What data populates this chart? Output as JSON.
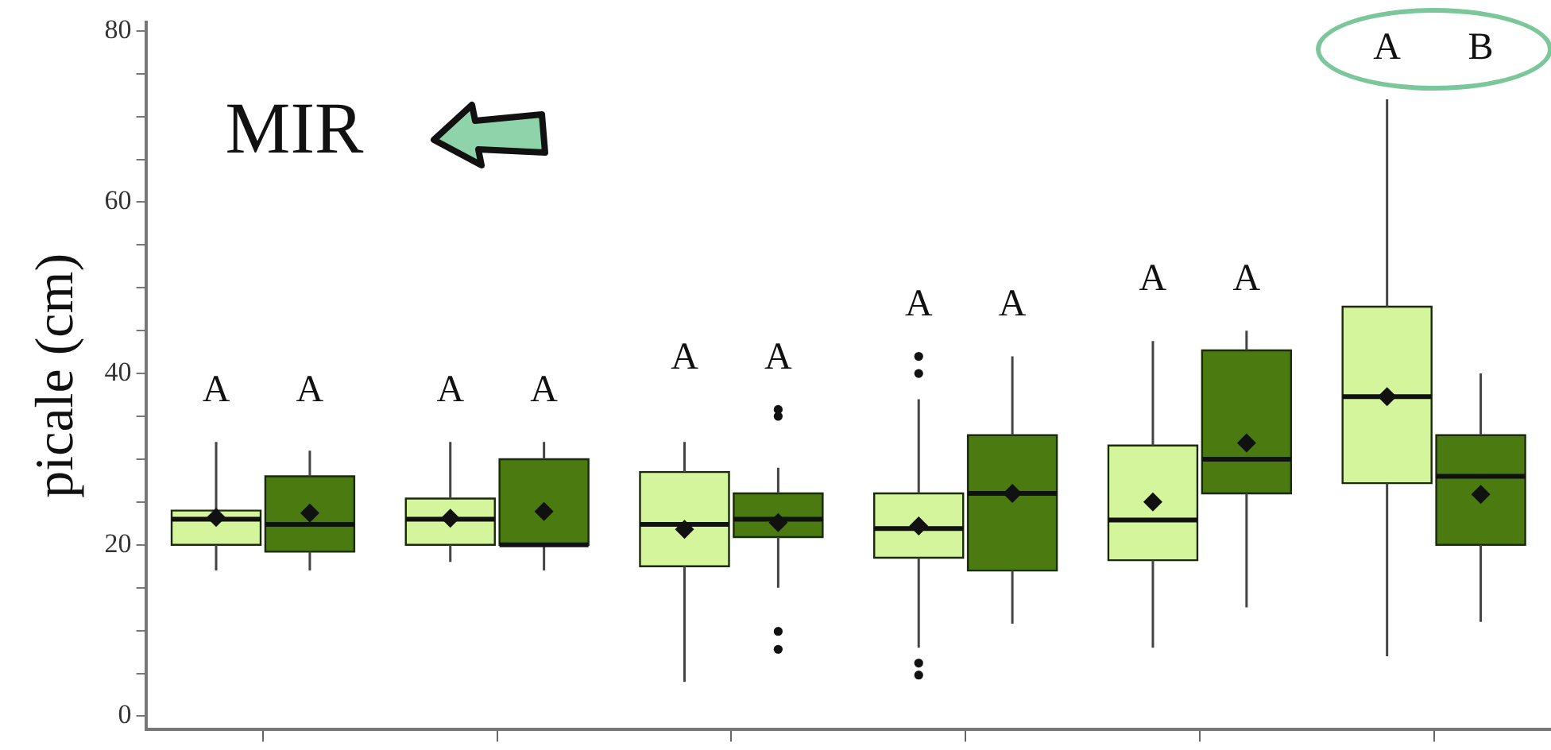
{
  "chart_data": {
    "type": "box",
    "ylabel": "picale (cm)",
    "categories": [
      null,
      null,
      null,
      null,
      null,
      null
    ],
    "ylim": [
      -1.5,
      81
    ],
    "yticks": [
      0,
      {
        "value": 5,
        "label": null
      },
      {
        "value": 10,
        "label": null
      },
      {
        "value": 15,
        "label": null
      },
      20,
      {
        "value": 25,
        "label": null
      },
      {
        "value": 30,
        "label": null
      },
      {
        "value": 35,
        "label": null
      },
      40,
      {
        "value": 45,
        "label": null
      },
      {
        "value": 50,
        "label": null
      },
      {
        "value": 55,
        "label": null
      },
      60,
      {
        "value": 65,
        "label": null
      },
      {
        "value": 70,
        "label": null
      },
      {
        "value": 75,
        "label": null
      },
      80
    ],
    "tick_labels": "y",
    "grid": false,
    "legend": false,
    "marker": "diamond",
    "series": [
      {
        "color": "#d4f59c",
        "boxes": [
          {
            "low": 17,
            "q1": 20,
            "median": 23,
            "q3": 24,
            "high": 32,
            "mean": 23.2
          },
          {
            "low": 18,
            "q1": 20,
            "median": 23,
            "q3": 25.4,
            "high": 32,
            "mean": 23.1
          },
          {
            "low": 4,
            "q1": 17.5,
            "median": 22.4,
            "q3": 28.5,
            "high": 32,
            "mean": 21.8
          },
          {
            "low": 8,
            "q1": 18.5,
            "median": 21.9,
            "q3": 26,
            "high": 37,
            "mean": 22.2,
            "outliers": [
              42,
              40,
              6.2,
              4.8
            ]
          },
          {
            "low": 8,
            "q1": 18.2,
            "median": 22.9,
            "q3": 31.6,
            "high": 43.8,
            "mean": 25
          },
          {
            "low": 7,
            "q1": 27.2,
            "median": 37.3,
            "q3": 47.8,
            "high": 72,
            "mean": 37.3
          }
        ]
      },
      {
        "color": "#4a7a10",
        "boxes": [
          {
            "low": 17,
            "q1": 19.2,
            "median": 22.4,
            "q3": 28,
            "high": 31,
            "mean": 23.7
          },
          {
            "low": 17,
            "q1": 20,
            "median": 20,
            "q3": 30,
            "high": 32,
            "mean": 23.9
          },
          {
            "low": 15,
            "q1": 20.9,
            "median": 23,
            "q3": 26,
            "high": 29,
            "mean": 22.6,
            "outliers": [
              35.8,
              35,
              9.9,
              7.8
            ]
          },
          {
            "low": 10.8,
            "q1": 17,
            "median": 26,
            "q3": 32.8,
            "high": 42,
            "mean": 26
          },
          {
            "low": 12.7,
            "q1": 26,
            "median": 30,
            "q3": 42.7,
            "high": 45,
            "mean": 31.9
          },
          {
            "low": 11,
            "q1": 20,
            "median": 28,
            "q3": 32.8,
            "high": 40,
            "mean": 25.9
          }
        ]
      }
    ],
    "annotations": [
      "MIR",
      "A",
      "A",
      "A",
      "A",
      "A",
      "A",
      "A",
      "A",
      "A",
      "A",
      "A",
      "B"
    ]
  }
}
